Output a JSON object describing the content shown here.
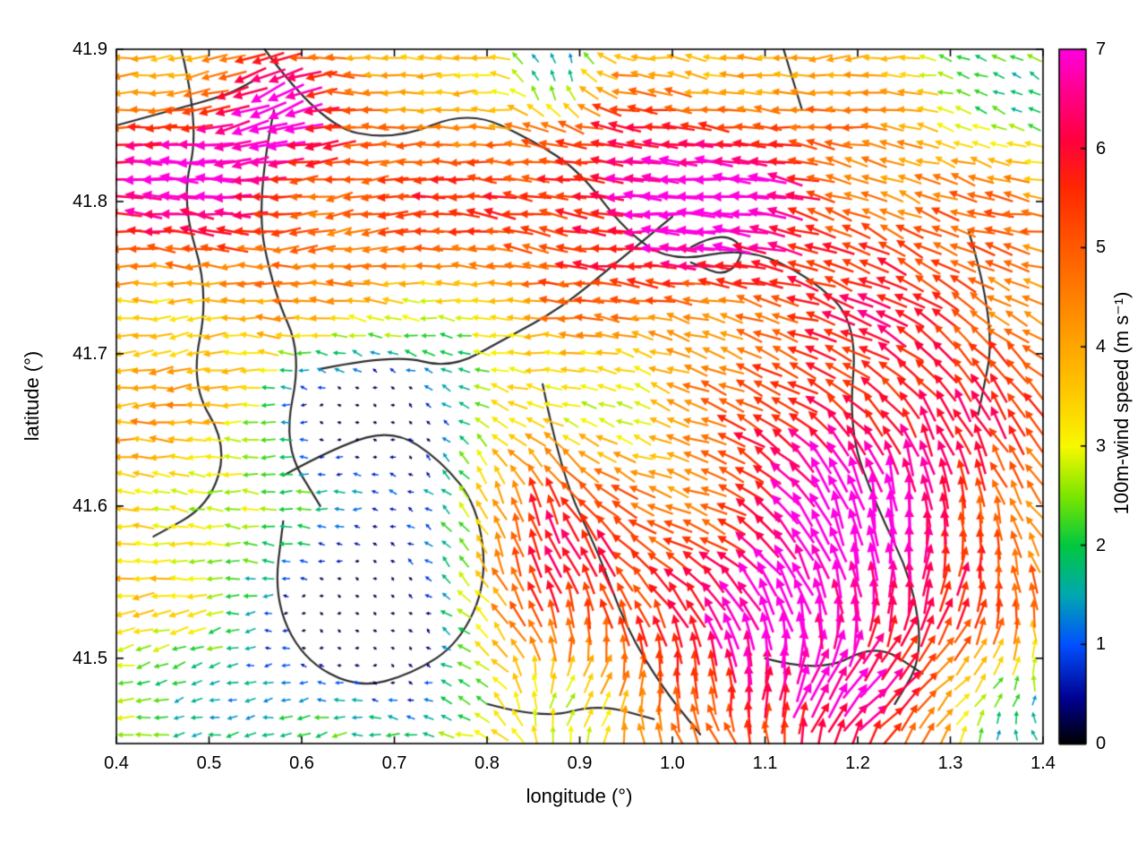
{
  "figure": {
    "background": "#ffffff",
    "axis_color": "#000000"
  },
  "chart_data": {
    "type": "quiver",
    "title": "",
    "xlabel": "longitude (°)",
    "ylabel": "latitude (°)",
    "xlim": [
      0.4,
      1.4
    ],
    "ylim": [
      41.444,
      41.9
    ],
    "xticks": [
      "0.4",
      "0.5",
      "0.6",
      "0.7",
      "0.8",
      "0.9",
      "1.0",
      "1.1",
      "1.2",
      "1.3",
      "1.4"
    ],
    "yticks": [
      "41.5",
      "41.6",
      "41.7",
      "41.8",
      "41.9"
    ],
    "grid": false,
    "legend": "colorbar-right",
    "contour_color": "#2e2e2e",
    "colorbar": {
      "label": "100m-wind speed (m s⁻¹)",
      "min": 0,
      "max": 7,
      "ticks": [
        "0",
        "1",
        "2",
        "3",
        "4",
        "5",
        "6",
        "7"
      ],
      "stops": [
        [
          0.0,
          "#000000"
        ],
        [
          0.45,
          "#000090"
        ],
        [
          1.0,
          "#0050ff"
        ],
        [
          1.5,
          "#00a8b0"
        ],
        [
          2.0,
          "#00c840"
        ],
        [
          2.5,
          "#7ce600"
        ],
        [
          3.0,
          "#f8f800"
        ],
        [
          3.6,
          "#ffc400"
        ],
        [
          4.3,
          "#ff9000"
        ],
        [
          5.0,
          "#ff5a00"
        ],
        [
          5.6,
          "#ff2800"
        ],
        [
          6.1,
          "#ff0040"
        ],
        [
          6.6,
          "#ff0090"
        ],
        [
          7.0,
          "#ff00e0"
        ]
      ]
    },
    "field": {
      "description": "100m wind vectors, dominant easterly flow (arrows point west); speed anomalies as gaussian features",
      "base_speed": 3.4,
      "base_angle_deg": 180,
      "grid_nx": 52,
      "grid_ny": 40,
      "speed_noise": 0.9,
      "angle_noise_deg": 26,
      "features": [
        {
          "lon": 0.46,
          "lat": 41.82,
          "sx": 0.1,
          "sy": 0.035,
          "ds": 2.6,
          "da": 0
        },
        {
          "lon": 0.75,
          "lat": 41.8,
          "sx": 0.28,
          "sy": 0.06,
          "ds": 1.6,
          "da": 0
        },
        {
          "lon": 1.02,
          "lat": 41.8,
          "sx": 0.1,
          "sy": 0.045,
          "ds": 2.9,
          "da": -8
        },
        {
          "lon": 1.3,
          "lat": 41.72,
          "sx": 0.12,
          "sy": 0.1,
          "ds": 1.6,
          "da": -20
        },
        {
          "lon": 1.15,
          "lat": 41.57,
          "sx": 0.11,
          "sy": 0.09,
          "ds": 3.4,
          "da": -42
        },
        {
          "lon": 0.88,
          "lat": 41.54,
          "sx": 0.07,
          "sy": 0.07,
          "ds": 2.6,
          "da": -48
        },
        {
          "lon": 0.7,
          "lat": 41.53,
          "sx": 0.08,
          "sy": 0.045,
          "ds": -3.1,
          "da": -25
        },
        {
          "lon": 0.66,
          "lat": 41.66,
          "sx": 0.06,
          "sy": 0.035,
          "ds": -2.7,
          "da": -10
        },
        {
          "lon": 0.62,
          "lat": 41.57,
          "sx": 0.14,
          "sy": 0.09,
          "ds": -1.4,
          "da": 0
        },
        {
          "lon": 0.9,
          "lat": 41.47,
          "sx": 0.05,
          "sy": 0.03,
          "ds": -3.2,
          "da": -60
        },
        {
          "lon": 1.33,
          "lat": 41.55,
          "sx": 0.09,
          "sy": 0.09,
          "ds": 0.8,
          "da": -75
        },
        {
          "lon": 1.02,
          "lat": 41.47,
          "sx": 0.12,
          "sy": 0.05,
          "ds": 1.2,
          "da": -55
        },
        {
          "lon": 0.45,
          "lat": 41.61,
          "sx": 0.11,
          "sy": 0.07,
          "ds": 0.9,
          "da": 0
        },
        {
          "lon": 0.55,
          "lat": 41.47,
          "sx": 0.11,
          "sy": 0.05,
          "ds": -1.1,
          "da": 15
        },
        {
          "lon": 1.36,
          "lat": 41.88,
          "sx": 0.08,
          "sy": 0.05,
          "ds": -1.6,
          "da": -15
        },
        {
          "lon": 0.95,
          "lat": 41.66,
          "sx": 0.1,
          "sy": 0.05,
          "ds": -0.9,
          "da": -5
        },
        {
          "lon": 0.8,
          "lat": 41.6,
          "sx": 0.07,
          "sy": 0.05,
          "ds": 1.2,
          "da": -30
        },
        {
          "lon": 1.22,
          "lat": 41.47,
          "sx": 0.08,
          "sy": 0.04,
          "ds": 0.6,
          "da": -80
        },
        {
          "lon": 0.75,
          "lat": 41.66,
          "sx": 0.05,
          "sy": 0.04,
          "ds": -2.0,
          "da": -15
        },
        {
          "lon": 1.37,
          "lat": 41.46,
          "sx": 0.06,
          "sy": 0.04,
          "ds": -2.2,
          "da": -40
        },
        {
          "lon": 0.87,
          "lat": 41.885,
          "sx": 0.035,
          "sy": 0.022,
          "ds": -3.0,
          "da": -90
        },
        {
          "lon": 0.57,
          "lat": 41.87,
          "sx": 0.045,
          "sy": 0.03,
          "ds": 2.2,
          "da": 25
        }
      ]
    },
    "contours": [
      [
        [
          0.4,
          41.85
        ],
        [
          0.46,
          41.86
        ],
        [
          0.52,
          41.87
        ],
        [
          0.55,
          41.88
        ]
      ],
      [
        [
          0.56,
          41.9
        ],
        [
          0.62,
          41.85
        ],
        [
          0.7,
          41.84
        ],
        [
          0.78,
          41.86
        ],
        [
          0.85,
          41.84
        ],
        [
          0.9,
          41.82
        ],
        [
          0.95,
          41.78
        ],
        [
          1.0,
          41.76
        ],
        [
          1.08,
          41.77
        ],
        [
          1.15,
          41.75
        ],
        [
          1.2,
          41.72
        ],
        [
          1.19,
          41.65
        ],
        [
          1.22,
          41.6
        ],
        [
          1.26,
          41.55
        ],
        [
          1.27,
          41.5
        ],
        [
          1.24,
          41.47
        ]
      ],
      [
        [
          0.47,
          41.9
        ],
        [
          0.49,
          41.85
        ],
        [
          0.47,
          41.8
        ],
        [
          0.5,
          41.74
        ],
        [
          0.48,
          41.68
        ],
        [
          0.52,
          41.64
        ],
        [
          0.5,
          41.6
        ],
        [
          0.44,
          41.58
        ]
      ],
      [
        [
          0.57,
          41.86
        ],
        [
          0.55,
          41.8
        ],
        [
          0.57,
          41.74
        ],
        [
          0.6,
          41.7
        ],
        [
          0.58,
          41.64
        ],
        [
          0.62,
          41.6
        ]
      ],
      [
        [
          0.62,
          41.69
        ],
        [
          0.7,
          41.7
        ],
        [
          0.76,
          41.69
        ],
        [
          0.82,
          41.71
        ],
        [
          0.88,
          41.73
        ],
        [
          0.94,
          41.76
        ],
        [
          1.0,
          41.79
        ]
      ],
      [
        [
          0.58,
          41.62
        ],
        [
          0.64,
          41.64
        ],
        [
          0.7,
          41.65
        ],
        [
          0.75,
          41.63
        ],
        [
          0.79,
          41.6
        ],
        [
          0.8,
          41.55
        ],
        [
          0.77,
          41.51
        ],
        [
          0.72,
          41.49
        ],
        [
          0.66,
          41.48
        ],
        [
          0.6,
          41.5
        ],
        [
          0.57,
          41.54
        ],
        [
          0.58,
          41.59
        ]
      ],
      [
        [
          0.86,
          41.68
        ],
        [
          0.88,
          41.62
        ],
        [
          0.92,
          41.57
        ],
        [
          0.95,
          41.52
        ],
        [
          0.99,
          41.48
        ],
        [
          1.03,
          41.45
        ]
      ],
      [
        [
          0.8,
          41.47
        ],
        [
          0.86,
          41.46
        ],
        [
          0.92,
          41.47
        ],
        [
          0.98,
          41.46
        ]
      ],
      [
        [
          1.32,
          41.78
        ],
        [
          1.35,
          41.72
        ],
        [
          1.33,
          41.66
        ]
      ],
      [
        [
          1.1,
          41.5
        ],
        [
          1.16,
          41.49
        ],
        [
          1.22,
          41.51
        ],
        [
          1.27,
          41.49
        ]
      ],
      [
        [
          1.12,
          41.9
        ],
        [
          1.14,
          41.86
        ]
      ],
      [
        [
          1.02,
          41.77
        ],
        [
          1.05,
          41.78
        ],
        [
          1.08,
          41.77
        ],
        [
          1.06,
          41.75
        ],
        [
          1.02,
          41.76
        ]
      ]
    ]
  }
}
